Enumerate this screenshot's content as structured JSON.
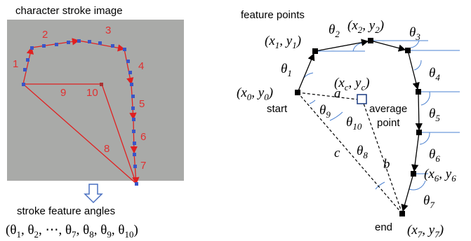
{
  "left": {
    "title": "character stroke image",
    "segments": [
      "1",
      "2",
      "3",
      "4",
      "5",
      "6",
      "7",
      "8",
      "9",
      "10"
    ],
    "caption": "stroke feature angles",
    "formula": [
      "(θ",
      "1",
      ", θ",
      "2",
      ", ⋯, θ",
      "7",
      ", θ",
      "8",
      ", θ",
      "9",
      ", θ",
      "10",
      ")"
    ]
  },
  "right": {
    "title": "feature points",
    "p0": [
      "(x",
      "0",
      ", y",
      "0",
      ")"
    ],
    "p1": [
      "(x",
      "1",
      ", y",
      "1",
      ")"
    ],
    "p2": [
      "(x",
      "2",
      ", y",
      "2",
      ")"
    ],
    "pc": [
      "(x",
      "c",
      ", y",
      "c",
      ")"
    ],
    "p6": [
      "(x",
      "6",
      ", y",
      "6"
    ],
    "p7": [
      "(x",
      "7",
      ", y",
      "7",
      ")"
    ],
    "t1": [
      "θ",
      "1"
    ],
    "t2": [
      "θ",
      "2"
    ],
    "t3": [
      "θ",
      "3"
    ],
    "t4": [
      "θ",
      "4"
    ],
    "t5": [
      "θ",
      "5"
    ],
    "t6": [
      "θ",
      "6"
    ],
    "t7": [
      "θ",
      "7"
    ],
    "t8": [
      "θ",
      "8"
    ],
    "t9": [
      "θ",
      "9"
    ],
    "t10": [
      "θ",
      "10"
    ],
    "start": "start",
    "end": "end",
    "average": "average",
    "point": "point",
    "a": "a",
    "b": "b",
    "c": "c"
  }
}
